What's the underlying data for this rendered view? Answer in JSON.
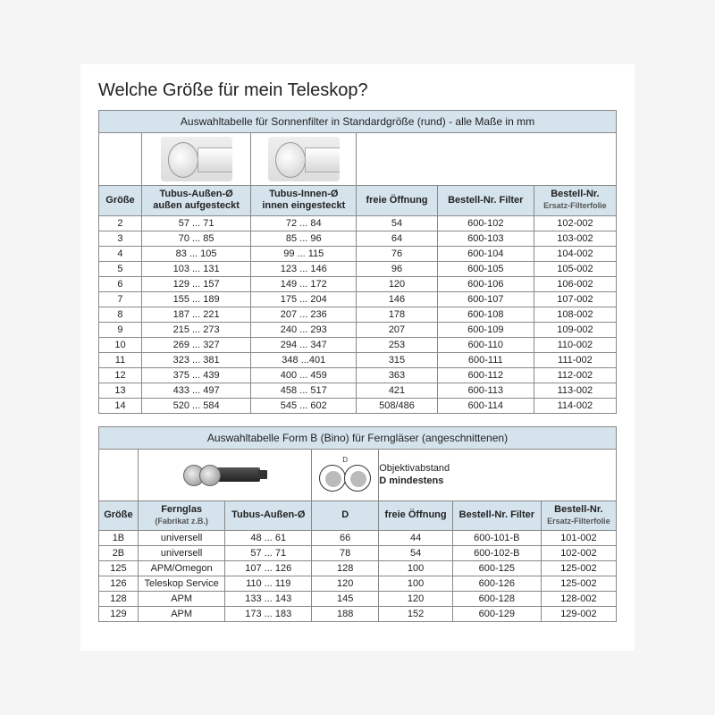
{
  "title": "Welche Größe für mein Teleskop?",
  "table1": {
    "caption": "Auswahltabelle für Sonnenfilter in Standardgröße (rund) - alle Maße in mm",
    "headers": {
      "size": "Größe",
      "tubeOuter": "Tubus-Außen-Ø",
      "tubeOuterSub": "außen aufgesteckt",
      "tubeInner": "Tubus-Innen-Ø",
      "tubeInnerSub": "innen eingesteckt",
      "opening": "freie Öffnung",
      "orderFilter": "Bestell-Nr. Filter",
      "orderFoil": "Bestell-Nr.",
      "orderFoilSub": "Ersatz-Filterfolie"
    },
    "rows": [
      {
        "s": "2",
        "o": "57 ... 71",
        "i": "72 ... 84",
        "f": "54",
        "bf": "600-102",
        "be": "102-002"
      },
      {
        "s": "3",
        "o": "70 ... 85",
        "i": "85 ... 96",
        "f": "64",
        "bf": "600-103",
        "be": "103-002"
      },
      {
        "s": "4",
        "o": "83 ... 105",
        "i": "99 ... 115",
        "f": "76",
        "bf": "600-104",
        "be": "104-002"
      },
      {
        "s": "5",
        "o": "103 ... 131",
        "i": "123 ... 146",
        "f": "96",
        "bf": "600-105",
        "be": "105-002"
      },
      {
        "s": "6",
        "o": "129 ... 157",
        "i": "149 ... 172",
        "f": "120",
        "bf": "600-106",
        "be": "106-002"
      },
      {
        "s": "7",
        "o": "155 ... 189",
        "i": "175 ... 204",
        "f": "146",
        "bf": "600-107",
        "be": "107-002"
      },
      {
        "s": "8",
        "o": "187 ... 221",
        "i": "207 ... 236",
        "f": "178",
        "bf": "600-108",
        "be": "108-002"
      },
      {
        "s": "9",
        "o": "215 ... 273",
        "i": "240 ... 293",
        "f": "207",
        "bf": "600-109",
        "be": "109-002"
      },
      {
        "s": "10",
        "o": "269 ... 327",
        "i": "294 ... 347",
        "f": "253",
        "bf": "600-110",
        "be": "110-002"
      },
      {
        "s": "11",
        "o": "323 ... 381",
        "i": "348 ...401",
        "f": "315",
        "bf": "600-111",
        "be": "111-002"
      },
      {
        "s": "12",
        "o": "375 ... 439",
        "i": "400 ... 459",
        "f": "363",
        "bf": "600-112",
        "be": "112-002"
      },
      {
        "s": "13",
        "o": "433 ... 497",
        "i": "458 ... 517",
        "f": "421",
        "bf": "600-113",
        "be": "113-002"
      },
      {
        "s": "14",
        "o": "520 ... 584",
        "i": "545 ... 602",
        "f": "508/486",
        "bf": "600-114",
        "be": "114-002"
      }
    ]
  },
  "table2": {
    "caption": "Auswahltabelle Form B (Bino) für Ferngläser  (angeschnittenen)",
    "objTextLine1": "Objektivabstand",
    "objTextLine2": "D mindestens",
    "headers": {
      "size": "Größe",
      "bino": "Fernglas",
      "binoSub": "(Fabrikat z.B.)",
      "tubeOuter": "Tubus-Außen-Ø",
      "d": "D",
      "opening": "freie Öffnung",
      "orderFilter": "Bestell-Nr. Filter",
      "orderFoil": "Bestell-Nr.",
      "orderFoilSub": "Ersatz-Filterfolie"
    },
    "rows": [
      {
        "s": "1B",
        "b": "universell",
        "o": "48 ... 61",
        "d": "66",
        "f": "44",
        "bf": "600-101-B",
        "be": "101-002"
      },
      {
        "s": "2B",
        "b": "universell",
        "o": "57 ... 71",
        "d": "78",
        "f": "54",
        "bf": "600-102-B",
        "be": "102-002"
      },
      {
        "s": "125",
        "b": "APM/Omegon",
        "o": "107 ... 126",
        "d": "128",
        "f": "100",
        "bf": "600-125",
        "be": "125-002"
      },
      {
        "s": "126",
        "b": "Teleskop Service",
        "o": "110 ... 119",
        "d": "120",
        "f": "100",
        "bf": "600-126",
        "be": "125-002"
      },
      {
        "s": "128",
        "b": "APM",
        "o": "133 ... 143",
        "d": "145",
        "f": "120",
        "bf": "600-128",
        "be": "128-002"
      },
      {
        "s": "129",
        "b": "APM",
        "o": "173 ... 183",
        "d": "188",
        "f": "152",
        "bf": "600-129",
        "be": "129-002"
      }
    ]
  },
  "styling": {
    "headerBg": "#d5e3ed",
    "borderColor": "#888888",
    "pageBg": "#ffffff",
    "bodyBg": "#f5f5f5",
    "textColor": "#222222",
    "titleFontSize": 20,
    "tableFontSize": 11,
    "subFontSize": 9,
    "pageWidth": 620
  }
}
